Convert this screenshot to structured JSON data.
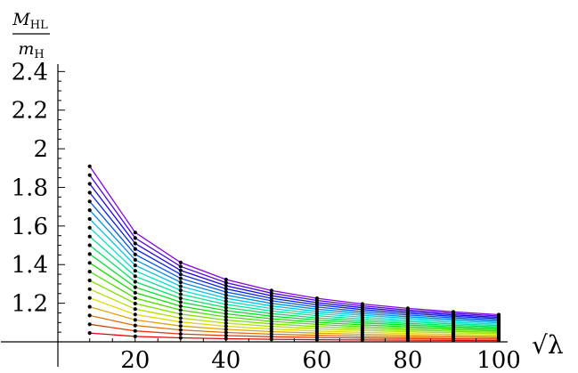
{
  "chart_data": {
    "type": "line",
    "xlabel": "√λ",
    "ylabel": {
      "num_main": "M",
      "num_sub": "HL",
      "den_main": "m",
      "den_sub": "H"
    },
    "xlim": [
      3,
      100
    ],
    "ylim": [
      1.0,
      2.42
    ],
    "xticks": [
      20,
      40,
      60,
      80,
      100
    ],
    "yticks": [
      1.2,
      1.4,
      1.6,
      1.8,
      2.0,
      2.2,
      2.4
    ],
    "ytick_labels": [
      "1.2",
      "1.4",
      "1.6",
      "1.8",
      "2",
      "2.2",
      "2.4"
    ],
    "x": [
      10,
      20,
      30,
      40,
      50,
      60,
      70,
      80,
      90,
      100
    ],
    "n_curves": 20,
    "extent_a": 15,
    "extent_b": 6.5,
    "colors": {
      "curve_hue_low": 0,
      "curve_hue_high": 275,
      "points": "#000000",
      "axes": "#000000"
    },
    "grid": false,
    "legend": false
  }
}
